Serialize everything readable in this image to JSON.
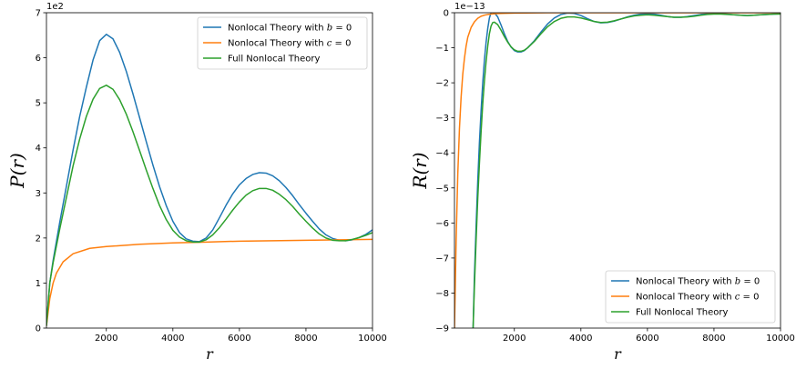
{
  "chart_data": [
    {
      "type": "line",
      "xlabel": "r",
      "ylabel": "P(r)",
      "offset_text": "1e2",
      "xlim": [
        200,
        10000
      ],
      "ylim": [
        0,
        7
      ],
      "xticks": [
        2000,
        4000,
        6000,
        8000,
        10000
      ],
      "yticks": [
        0,
        1,
        2,
        3,
        4,
        5,
        6,
        7
      ],
      "xtick_labels": [
        "2000",
        "4000",
        "6000",
        "8000",
        "10000"
      ],
      "ytick_labels": [
        "0",
        "1",
        "2",
        "3",
        "4",
        "5",
        "6",
        "7"
      ],
      "legend_position": "top-right",
      "series": [
        {
          "name": "Nonlocal Theory with b = 0",
          "color": "#1f77b4",
          "x": [
            200,
            300,
            400,
            600,
            800,
            1000,
            1200,
            1400,
            1600,
            1800,
            2000,
            2200,
            2400,
            2600,
            2800,
            3000,
            3200,
            3400,
            3600,
            3800,
            4000,
            4200,
            4400,
            4600,
            4800,
            5000,
            5200,
            5400,
            5600,
            5800,
            6000,
            6200,
            6400,
            6600,
            6800,
            7000,
            7200,
            7400,
            7600,
            7800,
            8000,
            8200,
            8400,
            8600,
            8800,
            9000,
            9200,
            9400,
            9600,
            9800,
            10000
          ],
          "y": [
            0.05,
            1.0,
            1.5,
            2.35,
            3.15,
            3.95,
            4.7,
            5.35,
            5.95,
            6.38,
            6.52,
            6.42,
            6.12,
            5.7,
            5.2,
            4.67,
            4.14,
            3.62,
            3.14,
            2.72,
            2.37,
            2.12,
            1.98,
            1.93,
            1.92,
            2.0,
            2.18,
            2.45,
            2.73,
            2.98,
            3.18,
            3.32,
            3.41,
            3.45,
            3.44,
            3.38,
            3.27,
            3.12,
            2.94,
            2.74,
            2.55,
            2.37,
            2.2,
            2.07,
            1.99,
            1.95,
            1.94,
            1.96,
            2.01,
            2.08,
            2.18
          ]
        },
        {
          "name": "Nonlocal Theory with c = 0",
          "color": "#ff7f0e",
          "x": [
            200,
            300,
            400,
            500,
            700,
            1000,
            1500,
            2000,
            3000,
            4000,
            5000,
            6000,
            7000,
            8000,
            9000,
            10000
          ],
          "y": [
            0.05,
            0.65,
            1.0,
            1.22,
            1.47,
            1.65,
            1.77,
            1.81,
            1.86,
            1.89,
            1.91,
            1.93,
            1.94,
            1.95,
            1.96,
            1.97
          ]
        },
        {
          "name": "Full Nonlocal Theory",
          "color": "#2ca02c",
          "x": [
            200,
            300,
            400,
            600,
            800,
            1000,
            1200,
            1400,
            1600,
            1800,
            2000,
            2200,
            2400,
            2600,
            2800,
            3000,
            3200,
            3400,
            3600,
            3800,
            4000,
            4200,
            4400,
            4600,
            4800,
            5000,
            5200,
            5400,
            5600,
            5800,
            6000,
            6200,
            6400,
            6600,
            6800,
            7000,
            7200,
            7400,
            7600,
            7800,
            8000,
            8200,
            8400,
            8600,
            8800,
            9000,
            9200,
            9400,
            9600,
            9800,
            10000
          ],
          "y": [
            0.05,
            1.0,
            1.45,
            2.2,
            2.9,
            3.6,
            4.2,
            4.7,
            5.08,
            5.32,
            5.39,
            5.3,
            5.07,
            4.75,
            4.36,
            3.94,
            3.51,
            3.1,
            2.72,
            2.41,
            2.17,
            2.02,
            1.94,
            1.91,
            1.91,
            1.96,
            2.07,
            2.23,
            2.42,
            2.62,
            2.8,
            2.95,
            3.05,
            3.1,
            3.1,
            3.06,
            2.97,
            2.85,
            2.7,
            2.53,
            2.37,
            2.22,
            2.09,
            2.0,
            1.95,
            1.94,
            1.94,
            1.97,
            2.01,
            2.06,
            2.12
          ]
        }
      ]
    },
    {
      "type": "line",
      "xlabel": "r",
      "ylabel": "R(r)",
      "offset_text": "1e−13",
      "xlim": [
        200,
        10000
      ],
      "ylim": [
        -9,
        0
      ],
      "xticks": [
        2000,
        4000,
        6000,
        8000,
        10000
      ],
      "yticks": [
        0,
        -1,
        -2,
        -3,
        -4,
        -5,
        -6,
        -7,
        -8,
        -9
      ],
      "xtick_labels": [
        "2000",
        "4000",
        "6000",
        "8000",
        "10000"
      ],
      "ytick_labels": [
        "0",
        "−1",
        "−2",
        "−3",
        "−4",
        "−5",
        "−6",
        "−7",
        "−8",
        "−9"
      ],
      "legend_position": "bottom-right",
      "series": [
        {
          "name": "Nonlocal Theory with b = 0",
          "color": "#1f77b4",
          "x": [
            760,
            800,
            850,
            900,
            950,
            1000,
            1050,
            1100,
            1150,
            1200,
            1250,
            1300,
            1350,
            1400,
            1500,
            1600,
            1700,
            1800,
            1900,
            2000,
            2100,
            2200,
            2300,
            2400,
            2600,
            2800,
            3000,
            3200,
            3400,
            3600,
            3800,
            4000,
            4200,
            4400,
            4600,
            4800,
            5000,
            5200,
            5400,
            5600,
            5800,
            6000,
            6200,
            6400,
            6600,
            6800,
            7000,
            7200,
            7400,
            7600,
            7800,
            8000,
            8200,
            8400,
            8600,
            8800,
            9000,
            9200,
            9400,
            9600,
            9800,
            10000
          ],
          "y": [
            -9.0,
            -7.5,
            -6.1,
            -4.8,
            -3.7,
            -2.8,
            -2.0,
            -1.35,
            -0.85,
            -0.45,
            -0.15,
            0.0,
            0.02,
            0.0,
            -0.12,
            -0.35,
            -0.6,
            -0.82,
            -0.98,
            -1.08,
            -1.12,
            -1.12,
            -1.08,
            -1.0,
            -0.8,
            -0.55,
            -0.32,
            -0.15,
            -0.05,
            -0.01,
            -0.02,
            -0.08,
            -0.17,
            -0.25,
            -0.29,
            -0.28,
            -0.24,
            -0.18,
            -0.12,
            -0.07,
            -0.04,
            -0.03,
            -0.04,
            -0.07,
            -0.11,
            -0.13,
            -0.13,
            -0.11,
            -0.08,
            -0.05,
            -0.03,
            -0.02,
            -0.02,
            -0.04,
            -0.06,
            -0.07,
            -0.08,
            -0.07,
            -0.06,
            -0.05,
            -0.04,
            -0.03
          ]
        },
        {
          "name": "Nonlocal Theory with c = 0",
          "color": "#ff7f0e",
          "x": [
            200,
            250,
            300,
            350,
            400,
            450,
            500,
            550,
            600,
            700,
            800,
            900,
            1000,
            1100,
            1200,
            1400,
            1600,
            2000,
            3000,
            4000,
            6000,
            8000,
            10000
          ],
          "y": [
            -9.0,
            -6.5,
            -4.6,
            -3.3,
            -2.4,
            -1.75,
            -1.3,
            -0.95,
            -0.7,
            -0.42,
            -0.26,
            -0.16,
            -0.1,
            -0.07,
            -0.05,
            -0.03,
            -0.02,
            -0.01,
            0.0,
            0.0,
            0.0,
            0.0,
            0.0
          ]
        },
        {
          "name": "Full Nonlocal Theory",
          "color": "#2ca02c",
          "x": [
            760,
            800,
            850,
            900,
            950,
            1000,
            1050,
            1100,
            1150,
            1200,
            1250,
            1300,
            1350,
            1400,
            1500,
            1600,
            1700,
            1800,
            1900,
            2000,
            2100,
            2200,
            2300,
            2400,
            2600,
            2800,
            3000,
            3200,
            3400,
            3600,
            3800,
            4000,
            4200,
            4400,
            4600,
            4800,
            5000,
            5200,
            5400,
            5600,
            5800,
            6000,
            6200,
            6400,
            6600,
            6800,
            7000,
            7200,
            7400,
            7600,
            7800,
            8000,
            8200,
            8400,
            8600,
            8800,
            9000,
            9200,
            9400,
            9600,
            9800,
            10000
          ],
          "y": [
            -9.0,
            -7.8,
            -6.5,
            -5.3,
            -4.3,
            -3.4,
            -2.6,
            -1.95,
            -1.4,
            -0.95,
            -0.6,
            -0.38,
            -0.28,
            -0.27,
            -0.34,
            -0.5,
            -0.68,
            -0.84,
            -0.97,
            -1.06,
            -1.1,
            -1.1,
            -1.07,
            -1.0,
            -0.82,
            -0.6,
            -0.4,
            -0.25,
            -0.16,
            -0.12,
            -0.12,
            -0.15,
            -0.2,
            -0.25,
            -0.28,
            -0.27,
            -0.23,
            -0.18,
            -0.13,
            -0.09,
            -0.07,
            -0.06,
            -0.07,
            -0.09,
            -0.11,
            -0.13,
            -0.13,
            -0.12,
            -0.1,
            -0.07,
            -0.05,
            -0.04,
            -0.04,
            -0.05,
            -0.06,
            -0.07,
            -0.08,
            -0.07,
            -0.06,
            -0.05,
            -0.04,
            -0.04
          ]
        }
      ]
    }
  ]
}
